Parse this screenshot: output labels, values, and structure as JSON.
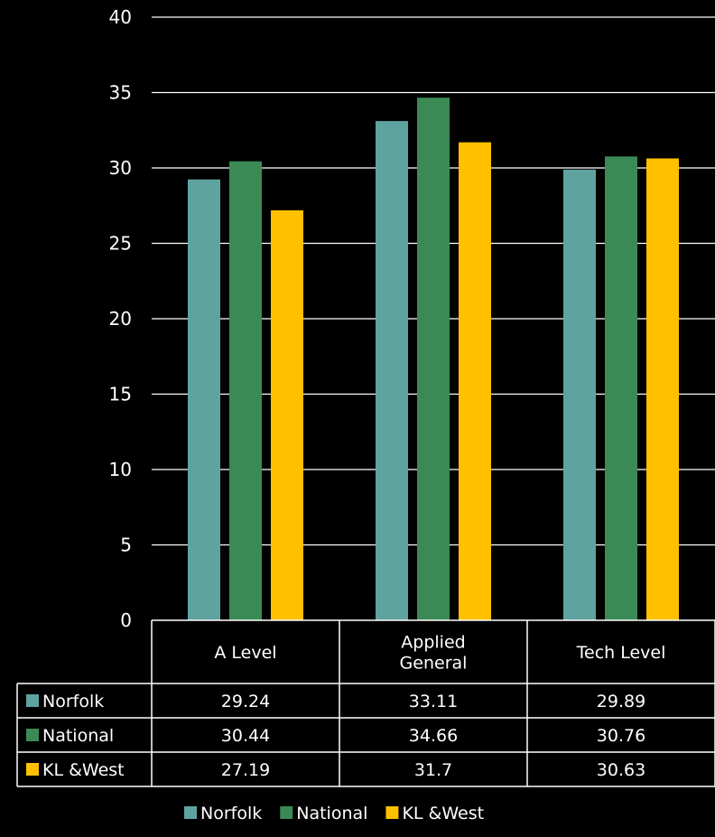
{
  "chart_data": {
    "type": "bar",
    "categories": [
      "A Level",
      "Applied\nGeneral",
      "Tech Level"
    ],
    "series": [
      {
        "name": "Norfolk",
        "color": "#5fa3a0",
        "values": [
          29.24,
          33.11,
          29.89
        ]
      },
      {
        "name": "National",
        "color": "#3b8a56",
        "values": [
          30.44,
          34.66,
          30.76
        ]
      },
      {
        "name": "KL &West",
        "color": "#ffc000",
        "values": [
          27.19,
          31.7,
          30.63
        ]
      }
    ],
    "ylim": [
      0,
      40
    ],
    "yticks": [
      0,
      5,
      10,
      15,
      20,
      25,
      30,
      35,
      40
    ],
    "grid": true,
    "data_table": true,
    "legend_position": "bottom"
  }
}
